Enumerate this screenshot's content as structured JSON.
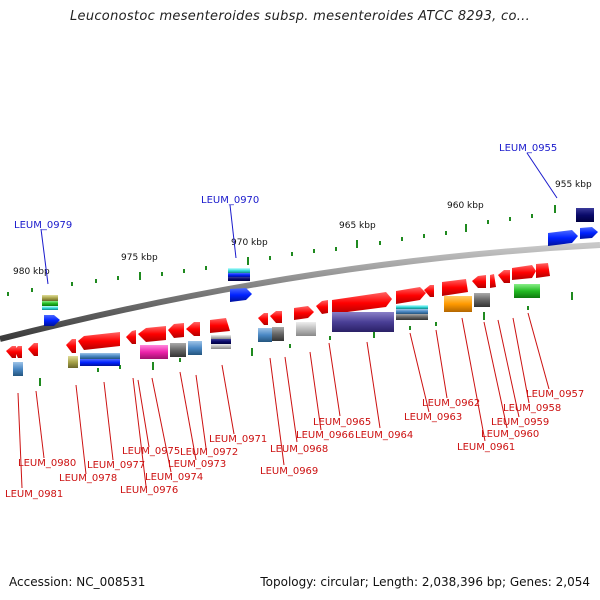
{
  "title": "Leuconostoc mesenteroides subsp. mesenteroides ATCC 8293, co...",
  "footer": {
    "accession": "Accession: NC_008531",
    "summary": "Topology: circular; Length: 2,038,396 bp; Genes: 2,054"
  },
  "colors": {
    "backbone": "#8a8a8a",
    "forward_gene": "#ff1a1a",
    "label_top": "#1a1acc",
    "label_bottom": "#cc1111",
    "tick_minor": "#1f8a1f"
  },
  "scale_ticks": [
    "955 kbp",
    "960 kbp",
    "965 kbp",
    "970 kbp",
    "975 kbp",
    "980 kbp"
  ],
  "top_labels": [
    "LEUM_0955",
    "LEUM_0970",
    "LEUM_0979"
  ],
  "bottom_labels": [
    "LEUM_0957",
    "LEUM_0958",
    "LEUM_0959",
    "LEUM_0960",
    "LEUM_0961",
    "LEUM_0962",
    "LEUM_0963",
    "LEUM_0964",
    "LEUM_0965",
    "LEUM_0966",
    "LEUM_0968",
    "LEUM_0969",
    "LEUM_0971",
    "LEUM_0972",
    "LEUM_0973",
    "LEUM_0974",
    "LEUM_0975",
    "LEUM_0976",
    "LEUM_0977",
    "LEUM_0978",
    "LEUM_0980",
    "LEUM_0981"
  ]
}
